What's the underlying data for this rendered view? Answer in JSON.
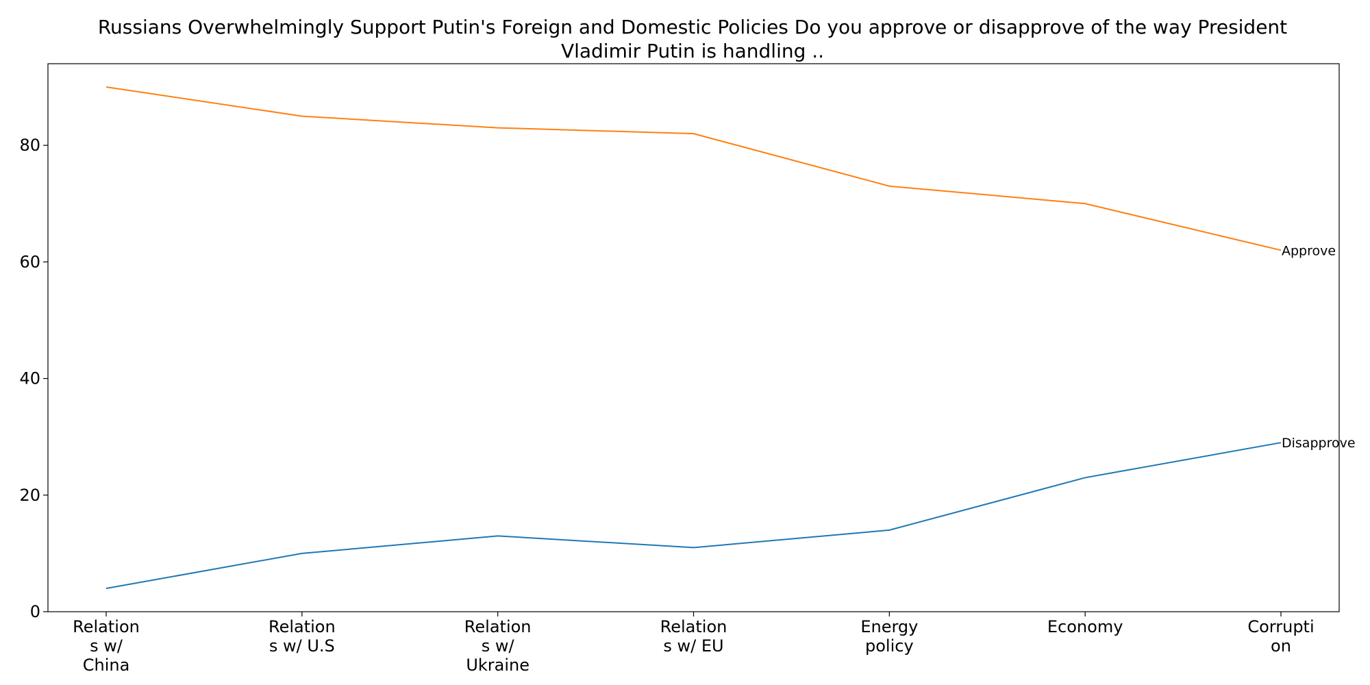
{
  "chart_data": {
    "type": "line",
    "title_lines": [
      "Russians Overwhelmingly Support Putin's Foreign and Domestic Policies Do you approve or disapprove of the way President",
      "Vladimir Putin is handling .."
    ],
    "categories": [
      [
        "Relation",
        "s w/",
        "China"
      ],
      [
        "Relation",
        "s w/ U.S"
      ],
      [
        "Relation",
        "s w/",
        "Ukraine"
      ],
      [
        "Relation",
        "s w/ EU"
      ],
      [
        "Energy",
        "policy"
      ],
      [
        "Economy"
      ],
      [
        "Corrupti",
        "on"
      ]
    ],
    "yticks": [
      0,
      20,
      40,
      60,
      80
    ],
    "ylim": [
      0,
      94
    ],
    "xlabel": "",
    "ylabel": "",
    "grid": false,
    "legend": "none",
    "series": [
      {
        "name": "Approve",
        "color": "#ff7f0e",
        "values": [
          90,
          85,
          83,
          82,
          73,
          70,
          62
        ]
      },
      {
        "name": "Disapprove",
        "color": "#1f77b4",
        "values": [
          4,
          10,
          13,
          11,
          14,
          23,
          29
        ]
      }
    ]
  }
}
